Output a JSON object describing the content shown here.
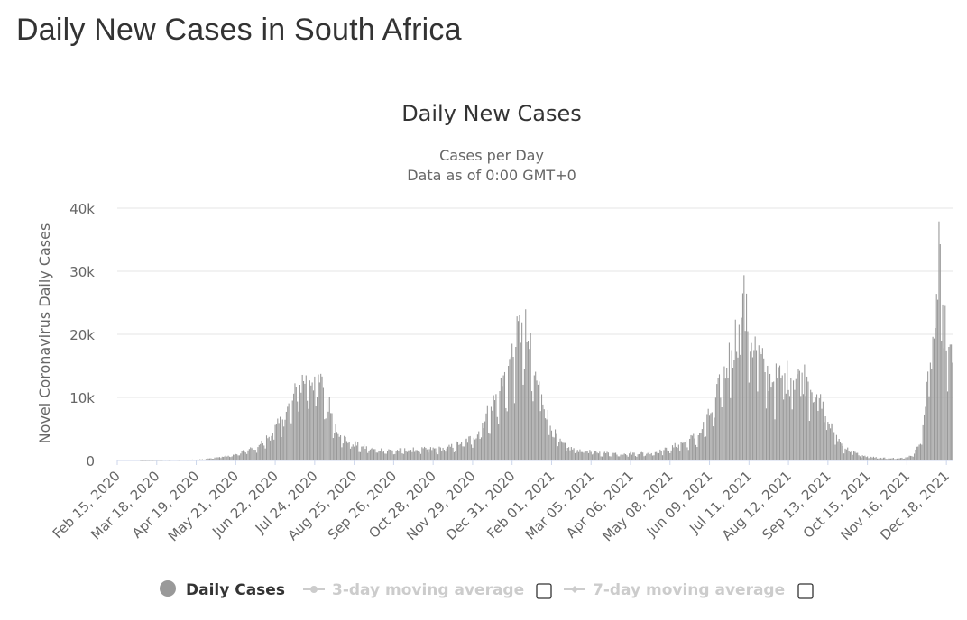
{
  "page": {
    "title": "Daily New Cases in South Africa"
  },
  "chart_data": {
    "type": "bar",
    "title": "Daily New Cases",
    "subtitle_line1": "Cases per Day",
    "subtitle_line2": "Data as of 0:00 GMT+0",
    "ylabel": "Novel Coronavirus Daily Cases",
    "xlabel": "",
    "ylim": [
      0,
      40000
    ],
    "yticks": [
      0,
      10000,
      20000,
      30000,
      40000
    ],
    "ytick_labels": [
      "0",
      "10k",
      "20k",
      "30k",
      "40k"
    ],
    "x_start": "2020-02-15",
    "x_end": "2021-12-23",
    "xtick_labels": [
      "Feb 15, 2020",
      "Mar 18, 2020",
      "Apr 19, 2020",
      "May 21, 2020",
      "Jun 22, 2020",
      "Jul 24, 2020",
      "Aug 25, 2020",
      "Sep 26, 2020",
      "Oct 28, 2020",
      "Nov 29, 2020",
      "Dec 31, 2020",
      "Feb 01, 2021",
      "Mar 05, 2021",
      "Apr 06, 2021",
      "May 08, 2021",
      "Jun 09, 2021",
      "Jul 11, 2021",
      "Aug 12, 2021",
      "Sep 13, 2021",
      "Oct 15, 2021",
      "Nov 16, 2021",
      "Dec 18, 2021"
    ],
    "grid": true,
    "bar_color": "#999999",
    "series": [
      {
        "name": "Daily Cases",
        "points": [
          [
            "2020-03-05",
            1
          ],
          [
            "2020-03-20",
            50
          ],
          [
            "2020-04-01",
            80
          ],
          [
            "2020-04-10",
            100
          ],
          [
            "2020-04-20",
            150
          ],
          [
            "2020-05-01",
            350
          ],
          [
            "2020-05-10",
            600
          ],
          [
            "2020-05-20",
            900
          ],
          [
            "2020-05-31",
            1600
          ],
          [
            "2020-06-10",
            2600
          ],
          [
            "2020-06-20",
            4400
          ],
          [
            "2020-06-28",
            6500
          ],
          [
            "2020-07-06",
            9500
          ],
          [
            "2020-07-12",
            12000
          ],
          [
            "2020-07-17",
            13500
          ],
          [
            "2020-07-24",
            13300
          ],
          [
            "2020-07-31",
            11500
          ],
          [
            "2020-08-07",
            7500
          ],
          [
            "2020-08-14",
            4000
          ],
          [
            "2020-08-21",
            3000
          ],
          [
            "2020-08-31",
            2200
          ],
          [
            "2020-09-10",
            1800
          ],
          [
            "2020-09-25",
            1600
          ],
          [
            "2020-10-10",
            1700
          ],
          [
            "2020-10-25",
            1800
          ],
          [
            "2020-11-08",
            1900
          ],
          [
            "2020-11-20",
            2900
          ],
          [
            "2020-11-30",
            3600
          ],
          [
            "2020-12-07",
            6000
          ],
          [
            "2020-12-14",
            8500
          ],
          [
            "2020-12-21",
            11000
          ],
          [
            "2020-12-28",
            15000
          ],
          [
            "2021-01-03",
            18000
          ],
          [
            "2021-01-08",
            21900
          ],
          [
            "2021-01-13",
            19000
          ],
          [
            "2021-01-18",
            13500
          ],
          [
            "2021-01-24",
            10500
          ],
          [
            "2021-01-31",
            5500
          ],
          [
            "2021-02-07",
            3000
          ],
          [
            "2021-02-14",
            2000
          ],
          [
            "2021-02-28",
            1500
          ],
          [
            "2021-03-15",
            1200
          ],
          [
            "2021-04-01",
            1100
          ],
          [
            "2021-04-20",
            1200
          ],
          [
            "2021-05-01",
            1500
          ],
          [
            "2021-05-15",
            2500
          ],
          [
            "2021-05-31",
            4000
          ],
          [
            "2021-06-10",
            7500
          ],
          [
            "2021-06-20",
            13000
          ],
          [
            "2021-06-27",
            17500
          ],
          [
            "2021-07-03",
            21500
          ],
          [
            "2021-07-06",
            26500
          ],
          [
            "2021-07-10",
            20500
          ],
          [
            "2021-07-17",
            17500
          ],
          [
            "2021-07-24",
            14000
          ],
          [
            "2021-07-31",
            12500
          ],
          [
            "2021-08-07",
            13500
          ],
          [
            "2021-08-14",
            13000
          ],
          [
            "2021-08-21",
            14200
          ],
          [
            "2021-08-28",
            12500
          ],
          [
            "2021-09-04",
            10500
          ],
          [
            "2021-09-11",
            7000
          ],
          [
            "2021-09-18",
            4500
          ],
          [
            "2021-09-25",
            2300
          ],
          [
            "2021-10-02",
            1400
          ],
          [
            "2021-10-12",
            700
          ],
          [
            "2021-10-25",
            400
          ],
          [
            "2021-11-10",
            350
          ],
          [
            "2021-11-20",
            700
          ],
          [
            "2021-11-26",
            2500
          ],
          [
            "2021-12-01",
            8500
          ],
          [
            "2021-12-05",
            15500
          ],
          [
            "2021-12-09",
            21000
          ],
          [
            "2021-12-12",
            37900
          ],
          [
            "2021-12-14",
            19000
          ],
          [
            "2021-12-17",
            24500
          ],
          [
            "2021-12-20",
            18000
          ],
          [
            "2021-12-23",
            15500
          ]
        ]
      }
    ],
    "legend": {
      "placement": "bottom",
      "items": [
        {
          "label": "Daily Cases",
          "color": "#999999",
          "active": true,
          "icon": "circle-marker-icon"
        },
        {
          "label": "3-day moving average",
          "color": "#cccccc",
          "active": false,
          "icon": "line-marker-icon"
        },
        {
          "label": "7-day moving average",
          "color": "#cccccc",
          "active": false,
          "icon": "line-marker-icon"
        }
      ]
    }
  }
}
